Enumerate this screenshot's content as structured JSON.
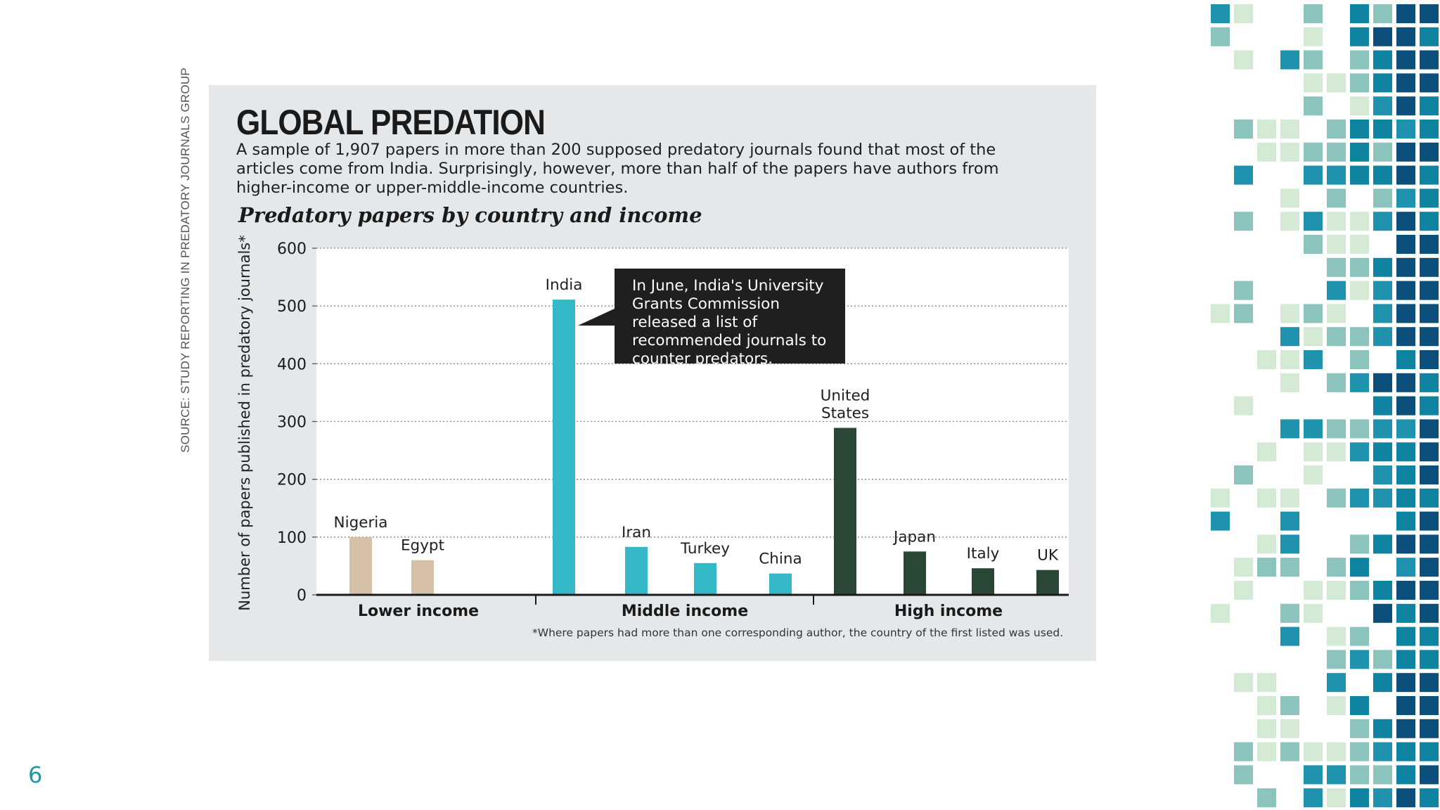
{
  "slide": {
    "page_number": "6",
    "source_note": "SOURCE: STUDY REPORTING IN PREDATORY JOURNALS GROUP"
  },
  "infographic": {
    "title": "GLOBAL PREDATION",
    "subtitle": "A sample of 1,907 papers in more than 200 supposed predatory journals found that most of the articles come from India. Surprisingly, however, more than half of the papers have authors from higher-income or upper-middle-income countries.",
    "chart_heading": "Predatory papers by country and income",
    "callout": "In June, India's University Grants Commission released a list of recommended journals to counter predators.",
    "footnote": "*Where papers had more than one corresponding author, the country of the first listed was used."
  },
  "chart_data": {
    "type": "bar",
    "title": "Predatory papers by country and income",
    "ylabel": "Number of papers published in predatory journals*",
    "xlabel": "",
    "ylim": [
      0,
      600
    ],
    "yticks": [
      0,
      100,
      200,
      300,
      400,
      500,
      600
    ],
    "grid": true,
    "groups": [
      {
        "name": "Lower income",
        "color": "#d6c1a8",
        "countries": [
          {
            "label": "Nigeria",
            "value": 100
          },
          {
            "label": "Egypt",
            "value": 60
          }
        ]
      },
      {
        "name": "Middle income",
        "color": "#35b8c8",
        "countries": [
          {
            "label": "India",
            "value": 511
          },
          {
            "label": "Iran",
            "value": 83
          },
          {
            "label": "Turkey",
            "value": 55
          },
          {
            "label": "China",
            "value": 37
          }
        ]
      },
      {
        "name": "High income",
        "color": "#2a4637",
        "countries": [
          {
            "label": "United States",
            "value": 289
          },
          {
            "label": "Japan",
            "value": 75
          },
          {
            "label": "Italy",
            "value": 46
          },
          {
            "label": "UK",
            "value": 43
          }
        ]
      }
    ]
  },
  "colors": {
    "page_number": "#1a9aa8",
    "mosaic": [
      "#d5ead5",
      "#8cc3bd",
      "#1f93ad",
      "#0f84a0",
      "#0b4f7a"
    ]
  }
}
